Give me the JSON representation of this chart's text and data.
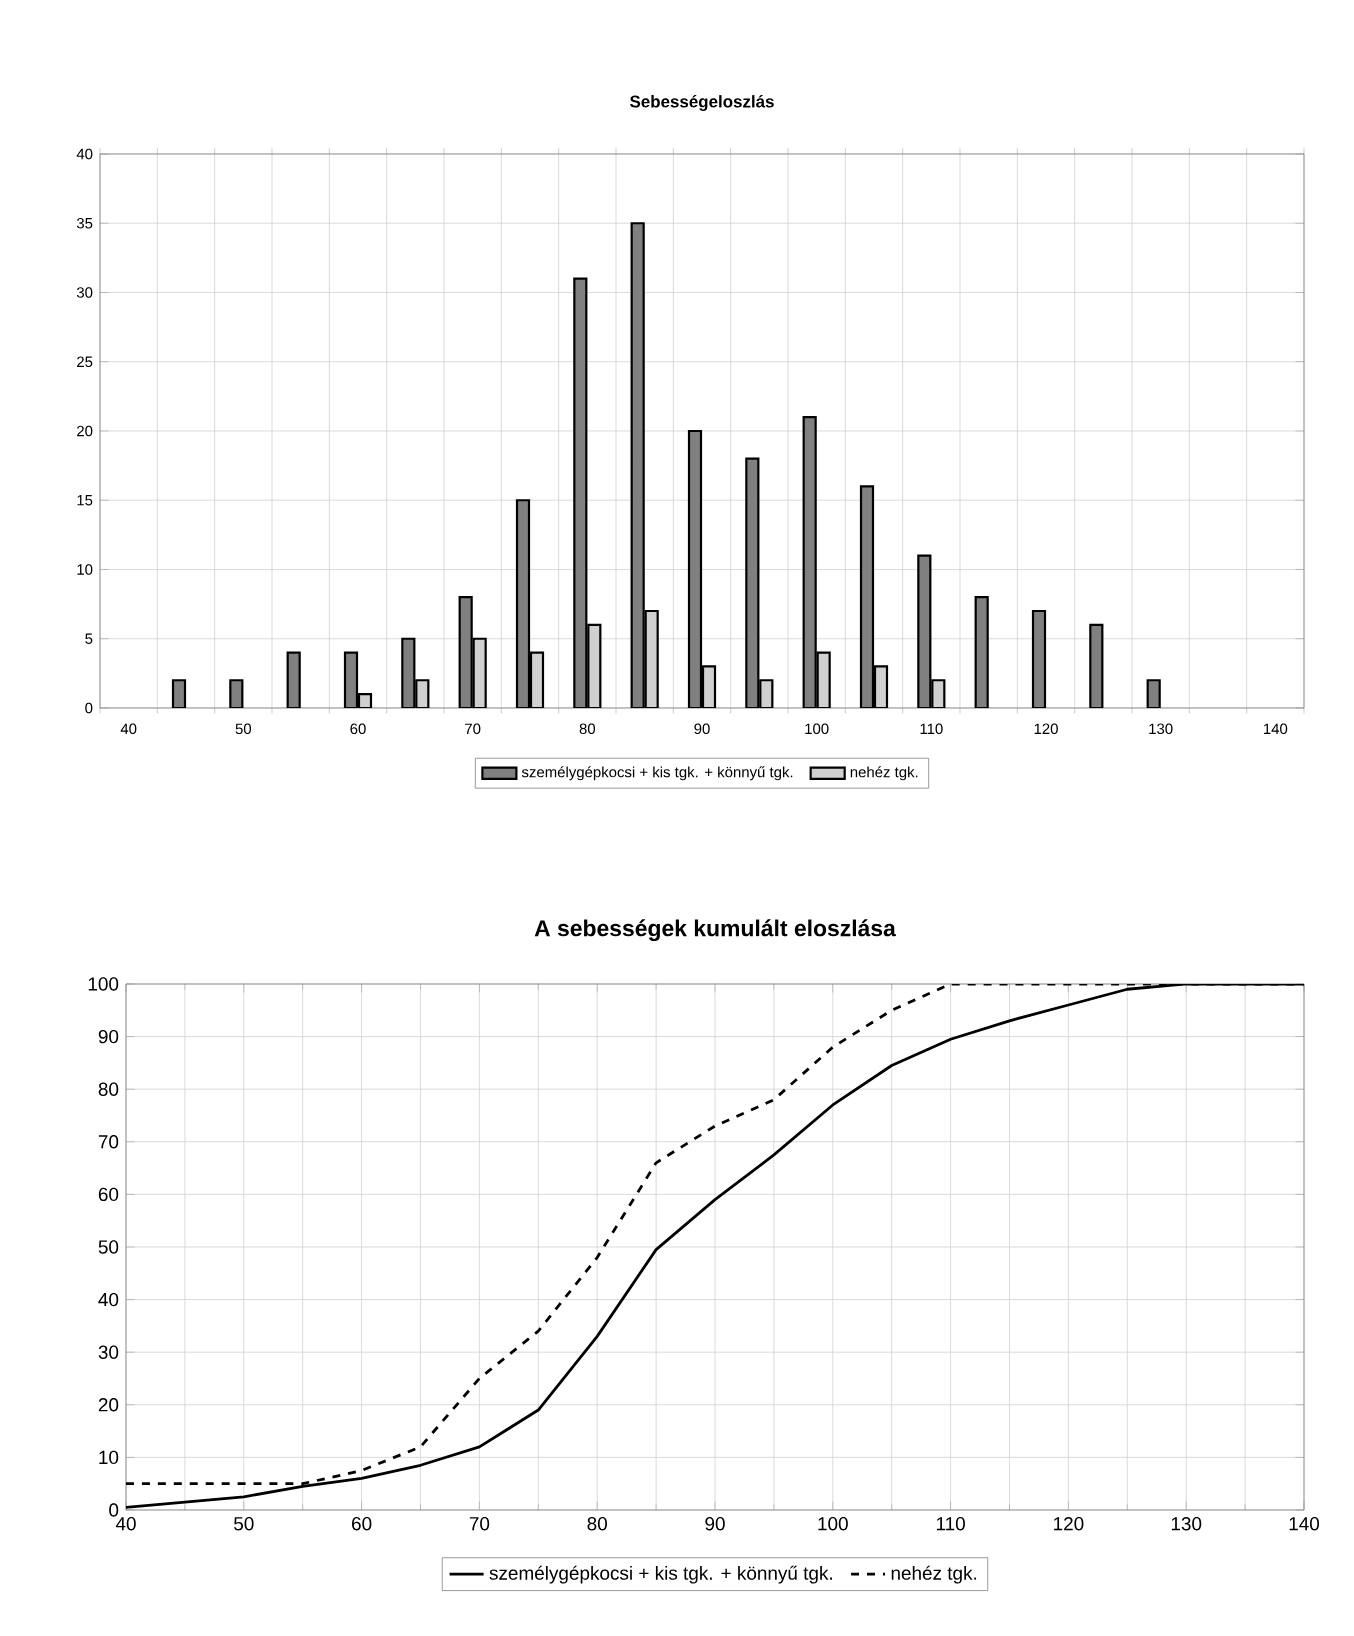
{
  "chart_data": [
    {
      "type": "bar",
      "title": "Sebességeloszlás",
      "categories": [
        "40",
        null,
        "50",
        null,
        "60",
        null,
        "70",
        null,
        "80",
        null,
        "90",
        null,
        "100",
        null,
        "110",
        null,
        "120",
        null,
        "130",
        null,
        "140"
      ],
      "series": [
        {
          "name": "személygépkocsi + kis tgk. + könnyű tgk.",
          "color": "#808080",
          "values": [
            null,
            2,
            2,
            4,
            4,
            5,
            8,
            15,
            31,
            35,
            20,
            18,
            21,
            16,
            11,
            8,
            7,
            6,
            2,
            null,
            null
          ]
        },
        {
          "name": "nehéz tgk.",
          "color": "#d0d0d0",
          "values": [
            null,
            null,
            null,
            null,
            1,
            2,
            5,
            4,
            6,
            7,
            3,
            2,
            4,
            3,
            2,
            null,
            null,
            null,
            null,
            null,
            null
          ]
        }
      ],
      "ylim": [
        0,
        40
      ],
      "yticks": [
        0,
        5,
        10,
        15,
        20,
        25,
        30,
        35,
        40
      ],
      "grid": true,
      "legend": "bottom"
    },
    {
      "type": "line",
      "title": "A sebességek kumulált eloszlása",
      "x": [
        40,
        45,
        50,
        55,
        60,
        65,
        70,
        75,
        80,
        85,
        90,
        95,
        100,
        105,
        110,
        115,
        120,
        125,
        130,
        135,
        140
      ],
      "series": [
        {
          "name": "személygépkocsi + kis tgk. + könnyű tgk.",
          "color": "#000000",
          "line_style": "solid",
          "values": [
            0.5,
            1.5,
            2.5,
            4.5,
            6,
            8.5,
            12,
            19,
            33,
            49.5,
            59,
            67.5,
            77,
            84.5,
            89.5,
            93,
            96,
            99,
            100,
            100,
            100
          ]
        },
        {
          "name": "nehéz tgk.",
          "color": "#000000",
          "line_style": "dashed",
          "values": [
            5,
            5,
            5,
            5,
            7.5,
            12,
            25,
            34,
            48,
            66,
            73,
            78,
            88,
            95,
            100,
            100,
            100,
            100,
            100,
            100,
            100
          ]
        }
      ],
      "xlim": [
        40,
        140
      ],
      "xticks": [
        40,
        50,
        60,
        70,
        80,
        90,
        100,
        110,
        120,
        130,
        140
      ],
      "ylim": [
        0,
        100
      ],
      "yticks": [
        0,
        10,
        20,
        30,
        40,
        50,
        60,
        70,
        80,
        90,
        100
      ],
      "grid": true,
      "legend": "bottom",
      "marker": "none"
    }
  ]
}
